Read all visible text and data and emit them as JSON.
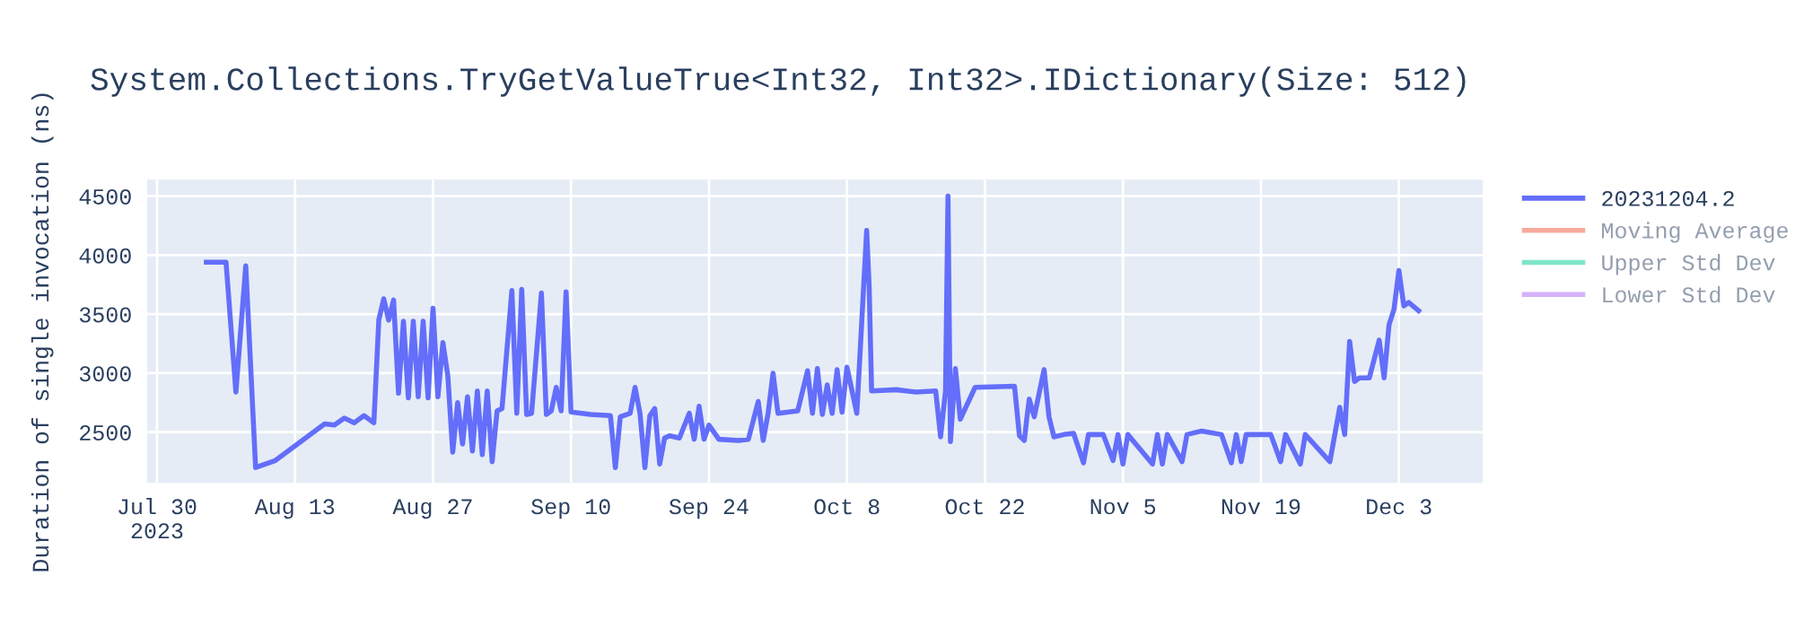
{
  "chart_data": {
    "type": "line",
    "title": "System.Collections.TryGetValueTrue<Int32, Int32>.IDictionary(Size: 512)",
    "ylabel": "Duration of single invocation (ns)",
    "xlim": [
      "2023-07-29",
      "2023-12-11T12:00"
    ],
    "ylim": [
      2070,
      4640
    ],
    "xticks": [
      {
        "value": "2023-07-30",
        "label": "Jul 30\n2023"
      },
      {
        "value": "2023-08-13",
        "label": "Aug 13"
      },
      {
        "value": "2023-08-27",
        "label": "Aug 27"
      },
      {
        "value": "2023-09-10",
        "label": "Sep 10"
      },
      {
        "value": "2023-09-24",
        "label": "Sep 24"
      },
      {
        "value": "2023-10-08",
        "label": "Oct 8"
      },
      {
        "value": "2023-10-22",
        "label": "Oct 22"
      },
      {
        "value": "2023-11-05",
        "label": "Nov 5"
      },
      {
        "value": "2023-11-19",
        "label": "Nov 19"
      },
      {
        "value": "2023-12-03",
        "label": "Dec 3"
      }
    ],
    "yticks": [
      2500,
      3000,
      3500,
      4000,
      4500
    ],
    "grid": true,
    "legend": "top right",
    "x": [
      "2023-08-04",
      "2023-08-06",
      "2023-08-07",
      "2023-08-08",
      "2023-08-09",
      "2023-08-11",
      "2023-08-16",
      "2023-08-17",
      "2023-08-18",
      "2023-08-19",
      "2023-08-20",
      "2023-08-21",
      "2023-08-21T12:00",
      "2023-08-22",
      "2023-08-22T12:00",
      "2023-08-23",
      "2023-08-23T12:00",
      "2023-08-24",
      "2023-08-24T12:00",
      "2023-08-25",
      "2023-08-25T12:00",
      "2023-08-26",
      "2023-08-26T12:00",
      "2023-08-27",
      "2023-08-27T12:00",
      "2023-08-28",
      "2023-08-28T12:00",
      "2023-08-29",
      "2023-08-29T12:00",
      "2023-08-30",
      "2023-08-30T12:00",
      "2023-08-31",
      "2023-08-31T12:00",
      "2023-09-01",
      "2023-09-01T12:00",
      "2023-09-02",
      "2023-09-02T12:00",
      "2023-09-03",
      "2023-09-04",
      "2023-09-04T12:00",
      "2023-09-05",
      "2023-09-05T12:00",
      "2023-09-06",
      "2023-09-07",
      "2023-09-07T12:00",
      "2023-09-08",
      "2023-09-08T12:00",
      "2023-09-09",
      "2023-09-09T12:00",
      "2023-09-10",
      "2023-09-12",
      "2023-09-14",
      "2023-09-14T12:00",
      "2023-09-15",
      "2023-09-16",
      "2023-09-16T12:00",
      "2023-09-17",
      "2023-09-17T12:00",
      "2023-09-18",
      "2023-09-18T12:00",
      "2023-09-19",
      "2023-09-19T12:00",
      "2023-09-20",
      "2023-09-21",
      "2023-09-22",
      "2023-09-22T12:00",
      "2023-09-23",
      "2023-09-23T12:00",
      "2023-09-24",
      "2023-09-25",
      "2023-09-27",
      "2023-09-28",
      "2023-09-29",
      "2023-09-29T12:00",
      "2023-09-30",
      "2023-09-30T12:00",
      "2023-10-01",
      "2023-10-03",
      "2023-10-04",
      "2023-10-04T12:00",
      "2023-10-05",
      "2023-10-05T12:00",
      "2023-10-06",
      "2023-10-06T12:00",
      "2023-10-07",
      "2023-10-07T12:00",
      "2023-10-08",
      "2023-10-09",
      "2023-10-10",
      "2023-10-10T06:00",
      "2023-10-10T12:00",
      "2023-10-13",
      "2023-10-15",
      "2023-10-17",
      "2023-10-17T12:00",
      "2023-10-18",
      "2023-10-18T06:00",
      "2023-10-18T12:00",
      "2023-10-19",
      "2023-10-19T12:00",
      "2023-10-21",
      "2023-10-25",
      "2023-10-25T12:00",
      "2023-10-26",
      "2023-10-26T06:00",
      "2023-10-26T12:00",
      "2023-10-27",
      "2023-10-28",
      "2023-10-28T12:00",
      "2023-10-29",
      "2023-10-30",
      "2023-10-31",
      "2023-11-01",
      "2023-11-01T12:00",
      "2023-11-03",
      "2023-11-04",
      "2023-11-04T12:00",
      "2023-11-05",
      "2023-11-05T12:00",
      "2023-11-08",
      "2023-11-08T12:00",
      "2023-11-09",
      "2023-11-09T12:00",
      "2023-11-11",
      "2023-11-11T12:00",
      "2023-11-13",
      "2023-11-15",
      "2023-11-16",
      "2023-11-16T12:00",
      "2023-11-17",
      "2023-11-17T12:00",
      "2023-11-20",
      "2023-11-21",
      "2023-11-21T12:00",
      "2023-11-23",
      "2023-11-23T12:00",
      "2023-11-26",
      "2023-11-26T12:00",
      "2023-11-27",
      "2023-11-27T12:00",
      "2023-11-28",
      "2023-11-28T12:00",
      "2023-11-29",
      "2023-11-30",
      "2023-12-01",
      "2023-12-01T12:00",
      "2023-12-02",
      "2023-12-02T12:00",
      "2023-12-03",
      "2023-12-03T12:00",
      "2023-12-04",
      "2023-12-05"
    ],
    "series": [
      {
        "name": "20231204.2",
        "color": "#636efa",
        "values": [
          3940,
          3940,
          2840,
          3910,
          2200,
          2260,
          2570,
          2560,
          2620,
          2580,
          2640,
          2580,
          3450,
          3630,
          3450,
          3620,
          2830,
          3440,
          2790,
          3440,
          2800,
          3440,
          2790,
          3550,
          2800,
          3260,
          2980,
          2330,
          2750,
          2400,
          2800,
          2340,
          2850,
          2310,
          2850,
          2250,
          2680,
          2700,
          3700,
          2660,
          3710,
          2650,
          2660,
          3680,
          2650,
          2680,
          2880,
          2680,
          3690,
          2670,
          2650,
          2640,
          2200,
          2630,
          2660,
          2880,
          2660,
          2200,
          2640,
          2700,
          2230,
          2450,
          2470,
          2450,
          2660,
          2440,
          2720,
          2440,
          2560,
          2440,
          2430,
          2440,
          2760,
          2430,
          2660,
          3000,
          2660,
          2680,
          3020,
          2660,
          3040,
          2650,
          2900,
          2660,
          3030,
          2670,
          3050,
          2660,
          4210,
          3740,
          2850,
          2860,
          2840,
          2850,
          2460,
          2850,
          4500,
          2420,
          3040,
          2610,
          2880,
          2890,
          2470,
          2430,
          2620,
          2780,
          2630,
          3030,
          2630,
          2460,
          2480,
          2490,
          2240,
          2480,
          2480,
          2260,
          2480,
          2230,
          2480,
          2230,
          2480,
          2230,
          2480,
          2250,
          2480,
          2510,
          2480,
          2240,
          2480,
          2250,
          2480,
          2480,
          2250,
          2480,
          2230,
          2480,
          2250,
          2480,
          2710,
          2480,
          3270,
          2930,
          2960,
          2960,
          3280,
          2960,
          3410,
          3540,
          3870,
          3570,
          3600,
          3530
        ]
      },
      {
        "name": "Moving Average",
        "color": "#ef553b",
        "values": [
          null,
          null,
          null,
          null,
          null,
          null,
          null,
          null,
          null,
          null,
          null,
          null,
          null,
          null,
          null,
          null,
          null,
          null,
          null,
          null,
          null,
          null,
          null,
          null,
          null,
          null,
          null,
          null,
          null,
          null,
          null,
          null,
          null,
          null,
          null,
          null,
          null,
          null,
          null,
          null,
          null,
          null,
          null,
          null,
          null,
          null,
          null,
          null,
          null,
          null,
          null,
          null,
          null,
          null,
          null,
          null,
          null,
          null,
          null,
          null,
          null,
          null,
          null,
          null,
          null,
          null,
          null,
          null,
          null,
          null,
          null,
          null,
          null,
          null,
          null,
          null,
          null,
          null,
          null,
          null,
          null,
          null,
          null,
          null,
          null,
          null,
          null,
          null,
          null,
          null,
          null,
          null,
          null,
          null,
          null,
          null,
          null,
          null,
          null,
          null,
          null,
          null,
          null,
          null,
          null,
          null,
          null,
          null,
          null,
          null,
          null,
          null,
          null,
          null,
          null,
          null,
          null,
          null,
          null,
          null,
          null,
          null,
          null,
          null,
          null,
          null,
          null,
          null,
          null,
          null,
          null,
          null,
          null,
          null,
          null,
          null,
          null,
          null,
          null,
          null,
          null,
          null,
          null,
          null,
          null,
          null,
          null,
          null,
          null,
          null,
          null,
          null
        ]
      },
      {
        "name": "Upper Std Dev",
        "color": "#00cc96",
        "values": [
          null,
          null,
          null,
          null,
          null,
          null,
          null,
          null,
          null,
          null,
          null,
          null,
          null,
          null,
          null,
          null,
          null,
          null,
          null,
          null,
          null,
          null,
          null,
          null,
          null,
          null,
          null,
          null,
          null,
          null,
          null,
          null,
          null,
          null,
          null,
          null,
          null,
          null,
          null,
          null,
          null,
          null,
          null,
          null,
          null,
          null,
          null,
          null,
          null,
          null,
          null,
          null,
          null,
          null,
          null,
          null,
          null,
          null,
          null,
          null,
          null,
          null,
          null,
          null,
          null,
          null,
          null,
          null,
          null,
          null,
          null,
          null,
          null,
          null,
          null,
          null,
          null,
          null,
          null,
          null,
          null,
          null,
          null,
          null,
          null,
          null,
          null,
          null,
          null,
          null,
          null,
          null,
          null,
          null,
          null,
          null,
          null,
          null,
          null,
          null,
          null,
          null,
          null,
          null,
          null,
          null,
          null,
          null,
          null,
          null,
          null,
          null,
          null,
          null,
          null,
          null,
          null,
          null,
          null,
          null,
          null,
          null,
          null,
          null,
          null,
          null,
          null,
          null,
          null,
          null,
          null,
          null,
          null,
          null,
          null,
          null,
          null,
          null,
          null,
          null,
          null,
          null,
          null,
          null,
          null,
          null,
          null,
          null,
          null,
          null,
          null,
          null
        ]
      },
      {
        "name": "Lower Std Dev",
        "color": "#ab63fa",
        "values": [
          null,
          null,
          null,
          null,
          null,
          null,
          null,
          null,
          null,
          null,
          null,
          null,
          null,
          null,
          null,
          null,
          null,
          null,
          null,
          null,
          null,
          null,
          null,
          null,
          null,
          null,
          null,
          null,
          null,
          null,
          null,
          null,
          null,
          null,
          null,
          null,
          null,
          null,
          null,
          null,
          null,
          null,
          null,
          null,
          null,
          null,
          null,
          null,
          null,
          null,
          null,
          null,
          null,
          null,
          null,
          null,
          null,
          null,
          null,
          null,
          null,
          null,
          null,
          null,
          null,
          null,
          null,
          null,
          null,
          null,
          null,
          null,
          null,
          null,
          null,
          null,
          null,
          null,
          null,
          null,
          null,
          null,
          null,
          null,
          null,
          null,
          null,
          null,
          null,
          null,
          null,
          null,
          null,
          null,
          null,
          null,
          null,
          null,
          null,
          null,
          null,
          null,
          null,
          null,
          null,
          null,
          null,
          null,
          null,
          null,
          null,
          null,
          null,
          null,
          null,
          null,
          null,
          null,
          null,
          null,
          null,
          null,
          null,
          null,
          null,
          null,
          null,
          null,
          null,
          null,
          null,
          null,
          null,
          null,
          null,
          null,
          null,
          null,
          null,
          null,
          null,
          null,
          null,
          null,
          null,
          null,
          null,
          null,
          null,
          null,
          null,
          null
        ]
      }
    ]
  }
}
